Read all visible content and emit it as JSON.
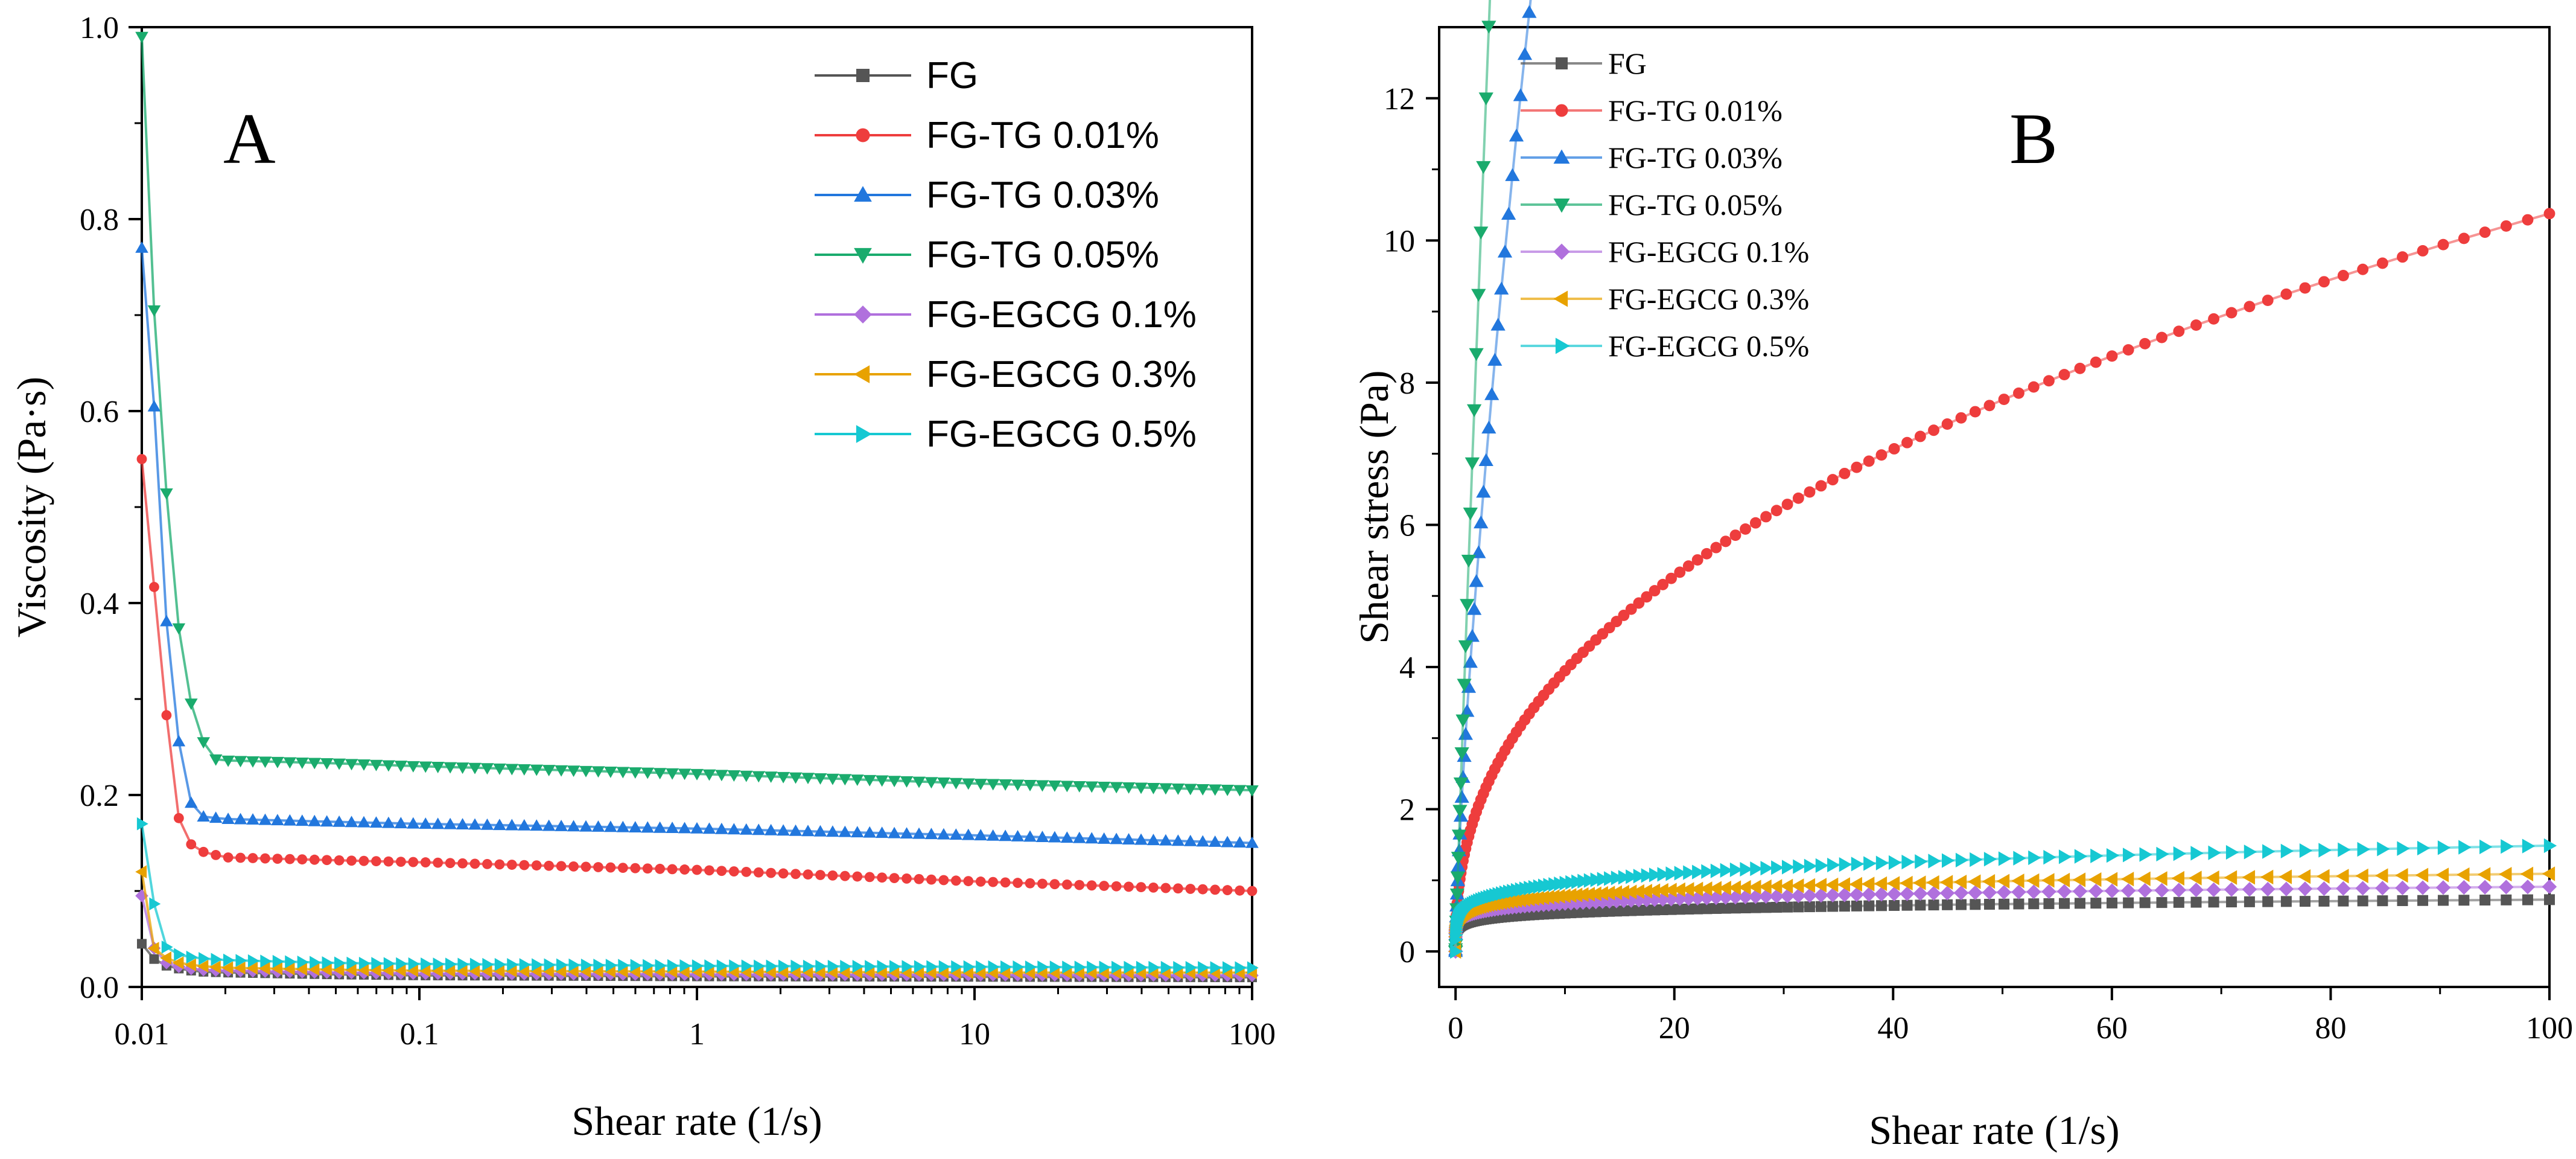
{
  "chart_data": [
    {
      "type": "line",
      "panel": "A",
      "xscale": "log",
      "xlabel": "Shear rate (1/s)",
      "ylabel": "Viscosity (Pa·s)",
      "xlim": [
        0.01,
        100
      ],
      "ylim": [
        0,
        1.0
      ],
      "xticks": [
        "0.01",
        "0.1",
        "1",
        "10",
        "100"
      ],
      "yticks": [
        "0.0",
        "0.2",
        "0.4",
        "0.6",
        "0.8",
        "1.0"
      ],
      "legend_position": "top-right",
      "series": [
        {
          "name": "FG",
          "color": "#555555",
          "marker": "square",
          "points": [
            [
              0.01,
              0.045
            ],
            [
              0.0107,
              0.032
            ],
            [
              0.0115,
              0.026
            ],
            [
              0.0123,
              0.022
            ],
            [
              0.0132,
              0.02
            ],
            [
              0.0142,
              0.018
            ],
            [
              0.016,
              0.016
            ],
            [
              0.02,
              0.015
            ],
            [
              0.05,
              0.013
            ],
            [
              0.1,
              0.012
            ],
            [
              1,
              0.011
            ],
            [
              10,
              0.0105
            ],
            [
              100,
              0.01
            ]
          ]
        },
        {
          "name": "FG-TG 0.01%",
          "color": "#ee3d3d",
          "marker": "circle",
          "points": [
            [
              0.01,
              0.55
            ],
            [
              0.0107,
              0.46
            ],
            [
              0.0115,
              0.37
            ],
            [
              0.0123,
              0.28
            ],
            [
              0.0132,
              0.19
            ],
            [
              0.0142,
              0.155
            ],
            [
              0.016,
              0.142
            ],
            [
              0.02,
              0.135
            ],
            [
              0.05,
              0.132
            ],
            [
              0.1,
              0.13
            ],
            [
              1,
              0.122
            ],
            [
              10,
              0.11
            ],
            [
              100,
              0.1
            ]
          ]
        },
        {
          "name": "FG-TG 0.03%",
          "color": "#2277dd",
          "marker": "triangle-up",
          "points": [
            [
              0.01,
              0.77
            ],
            [
              0.0107,
              0.66
            ],
            [
              0.0115,
              0.545
            ],
            [
              0.0123,
              0.375
            ],
            [
              0.0132,
              0.29
            ],
            [
              0.0142,
              0.205
            ],
            [
              0.016,
              0.178
            ],
            [
              0.02,
              0.175
            ],
            [
              0.05,
              0.172
            ],
            [
              0.1,
              0.17
            ],
            [
              1,
              0.165
            ],
            [
              10,
              0.158
            ],
            [
              100,
              0.15
            ]
          ]
        },
        {
          "name": "FG-TG 0.05%",
          "color": "#1aab6d",
          "marker": "triangle-down",
          "points": [
            [
              0.01,
              0.99
            ],
            [
              0.0107,
              0.77
            ],
            [
              0.0115,
              0.635
            ],
            [
              0.0123,
              0.51
            ],
            [
              0.0132,
              0.41
            ],
            [
              0.0142,
              0.32
            ],
            [
              0.016,
              0.27
            ],
            [
              0.0175,
              0.238
            ],
            [
              0.02,
              0.236
            ],
            [
              0.05,
              0.233
            ],
            [
              0.1,
              0.23
            ],
            [
              1,
              0.222
            ],
            [
              10,
              0.212
            ],
            [
              100,
              0.205
            ]
          ]
        },
        {
          "name": "FG-EGCG 0.1%",
          "color": "#b070dd",
          "marker": "diamond",
          "points": [
            [
              0.01,
              0.095
            ],
            [
              0.0107,
              0.05
            ],
            [
              0.0115,
              0.03
            ],
            [
              0.0123,
              0.025
            ],
            [
              0.0132,
              0.022
            ],
            [
              0.0142,
              0.02
            ],
            [
              0.016,
              0.018
            ],
            [
              0.02,
              0.017
            ],
            [
              0.05,
              0.015
            ],
            [
              0.1,
              0.014
            ],
            [
              1,
              0.013
            ],
            [
              10,
              0.0125
            ],
            [
              100,
              0.012
            ]
          ]
        },
        {
          "name": "FG-EGCG 0.3%",
          "color": "#e8a200",
          "marker": "triangle-left",
          "points": [
            [
              0.01,
              0.12
            ],
            [
              0.0107,
              0.045
            ],
            [
              0.0115,
              0.035
            ],
            [
              0.0123,
              0.03
            ],
            [
              0.0132,
              0.026
            ],
            [
              0.0142,
              0.024
            ],
            [
              0.016,
              0.022
            ],
            [
              0.02,
              0.02
            ],
            [
              0.05,
              0.018
            ],
            [
              0.1,
              0.017
            ],
            [
              1,
              0.016
            ],
            [
              10,
              0.015
            ],
            [
              100,
              0.015
            ]
          ]
        },
        {
          "name": "FG-EGCG 0.5%",
          "color": "#16c8d2",
          "marker": "triangle-right",
          "points": [
            [
              0.01,
              0.17
            ],
            [
              0.0107,
              0.088
            ],
            [
              0.0115,
              0.085
            ],
            [
              0.0123,
              0.04
            ],
            [
              0.0132,
              0.035
            ],
            [
              0.0142,
              0.032
            ],
            [
              0.016,
              0.03
            ],
            [
              0.02,
              0.028
            ],
            [
              0.05,
              0.025
            ],
            [
              0.1,
              0.024
            ],
            [
              1,
              0.022
            ],
            [
              10,
              0.021
            ],
            [
              100,
              0.02
            ]
          ]
        }
      ]
    },
    {
      "type": "line",
      "panel": "B",
      "xscale": "linear",
      "xlabel": "Shear rate (1/s)",
      "ylabel": "Shear stress (Pa)",
      "xlim": [
        -1.5,
        100
      ],
      "ylim": [
        -0.5,
        13
      ],
      "xticks": [
        "0",
        "20",
        "40",
        "60",
        "80",
        "100"
      ],
      "yticks": [
        "0",
        "2",
        "4",
        "6",
        "8",
        "10",
        "12"
      ],
      "legend_position": "top-left",
      "series": [
        {
          "name": "FG",
          "color": "#555555",
          "marker": "square",
          "model": {
            "a": 0.4,
            "b": 0.13
          }
        },
        {
          "name": "FG-TG 0.01%",
          "color": "#ee3d3d",
          "marker": "circle",
          "model": {
            "a": 1.5,
            "b": 0.42
          }
        },
        {
          "name": "FG-TG 0.03%",
          "color": "#2277dd",
          "marker": "triangle-up",
          "model": {
            "a": 3.25,
            "b": 0.735
          }
        },
        {
          "name": "FG-TG 0.05%",
          "color": "#1aab6d",
          "marker": "triangle-down",
          "model": {
            "a": 4.65,
            "b": 0.925
          }
        },
        {
          "name": "FG-EGCG 0.1%",
          "color": "#b070dd",
          "marker": "diamond",
          "model": {
            "a": 0.5,
            "b": 0.13
          }
        },
        {
          "name": "FG-EGCG 0.3%",
          "color": "#e8a200",
          "marker": "triangle-left",
          "model": {
            "a": 0.56,
            "b": 0.145
          }
        },
        {
          "name": "FG-EGCG 0.5%",
          "color": "#16c8d2",
          "marker": "triangle-right",
          "model": {
            "a": 0.62,
            "b": 0.19
          }
        }
      ]
    }
  ],
  "panels": {
    "a_letter": "A",
    "b_letter": "B"
  }
}
